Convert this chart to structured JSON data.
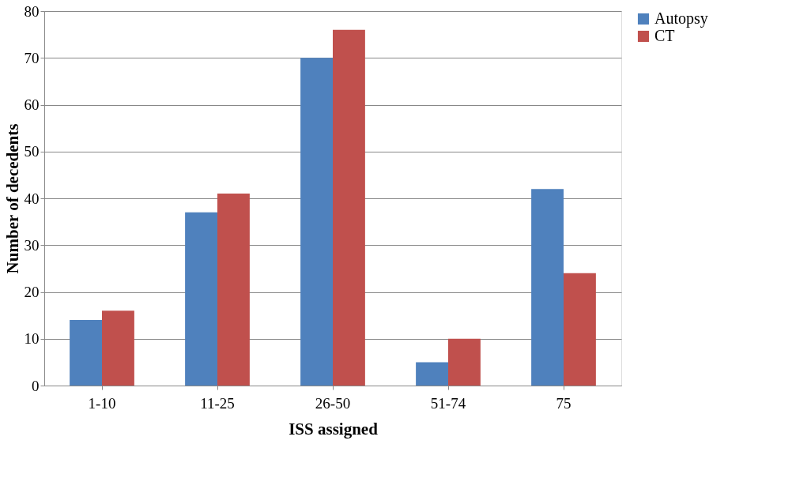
{
  "chart_data": {
    "type": "bar",
    "xlabel": "ISS assigned",
    "ylabel": "Number of decedents",
    "categories": [
      "1-10",
      "11-25",
      "26-50",
      "51-74",
      "75"
    ],
    "series": [
      {
        "name": "Autopsy",
        "color": "#4f81bd",
        "values": [
          14,
          37,
          70,
          5,
          42
        ]
      },
      {
        "name": "CT",
        "color": "#c0504d",
        "values": [
          16,
          41,
          76,
          10,
          24
        ]
      }
    ],
    "ylim": [
      0,
      80
    ],
    "yticks": [
      0,
      10,
      20,
      30,
      40,
      50,
      60,
      70,
      80
    ],
    "grid": "y",
    "legend": "right"
  }
}
